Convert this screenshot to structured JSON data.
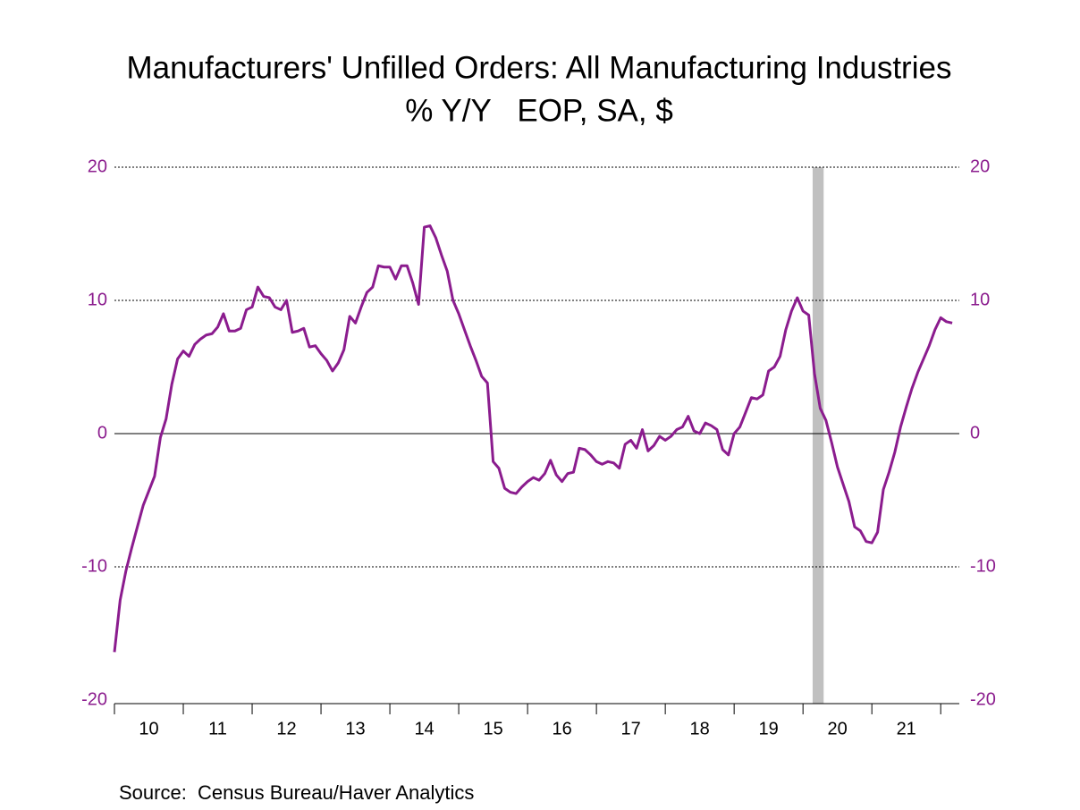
{
  "chart_data": {
    "type": "line",
    "title": "Manufacturers' Unfilled Orders: All Manufacturing Industries",
    "subtitle": "% Y/Y   EOP, SA, $",
    "source": "Source:  Census Bureau/Haver Analytics",
    "x": [
      2010,
      2010.083,
      2010.167,
      2010.25,
      2010.333,
      2010.417,
      2010.5,
      2010.583,
      2010.667,
      2010.75,
      2010.833,
      2010.917,
      2011,
      2011.083,
      2011.167,
      2011.25,
      2011.333,
      2011.417,
      2011.5,
      2011.583,
      2011.667,
      2011.75,
      2011.833,
      2011.917,
      2012,
      2012.083,
      2012.167,
      2012.25,
      2012.333,
      2012.417,
      2012.5,
      2012.583,
      2012.667,
      2012.75,
      2012.833,
      2012.917,
      2013,
      2013.083,
      2013.167,
      2013.25,
      2013.333,
      2013.417,
      2013.5,
      2013.583,
      2013.667,
      2013.75,
      2013.833,
      2013.917,
      2014,
      2014.083,
      2014.167,
      2014.25,
      2014.333,
      2014.417,
      2014.5,
      2014.583,
      2014.667,
      2014.75,
      2014.833,
      2014.917,
      2015,
      2015.083,
      2015.167,
      2015.25,
      2015.333,
      2015.417,
      2015.5,
      2015.583,
      2015.667,
      2015.75,
      2015.833,
      2015.917,
      2016,
      2016.083,
      2016.167,
      2016.25,
      2016.333,
      2016.417,
      2016.5,
      2016.583,
      2016.667,
      2016.75,
      2016.833,
      2016.917,
      2017,
      2017.083,
      2017.167,
      2017.25,
      2017.333,
      2017.417,
      2017.5,
      2017.583,
      2017.667,
      2017.75,
      2017.833,
      2017.917,
      2018,
      2018.083,
      2018.167,
      2018.25,
      2018.333,
      2018.417,
      2018.5,
      2018.583,
      2018.667,
      2018.75,
      2018.833,
      2018.917,
      2019,
      2019.083,
      2019.167,
      2019.25,
      2019.333,
      2019.417,
      2019.5,
      2019.583,
      2019.667,
      2019.75,
      2019.833,
      2019.917,
      2020,
      2020.083,
      2020.167,
      2020.25,
      2020.333,
      2020.417,
      2020.5,
      2020.583,
      2020.667,
      2020.75,
      2020.833,
      2020.917,
      2021,
      2021.083,
      2021.167,
      2021.25,
      2021.333,
      2021.417,
      2021.5,
      2021.583,
      2021.667,
      2021.75,
      2021.833,
      2021.917,
      2022,
      2022.083,
      2022.167
    ],
    "series": [
      {
        "name": "Unfilled Orders % Y/Y",
        "color": "#8b1c8e",
        "values": [
          -16.4,
          -12.5,
          -10.3,
          -8.6,
          -7.0,
          -5.4,
          -4.3,
          -3.2,
          -0.3,
          1.1,
          3.7,
          5.6,
          6.2,
          5.8,
          6.7,
          7.1,
          7.4,
          7.5,
          8.0,
          9.0,
          7.7,
          7.7,
          7.9,
          9.3,
          9.5,
          11.0,
          10.3,
          10.2,
          9.5,
          9.3,
          10.0,
          7.6,
          7.7,
          7.9,
          6.5,
          6.6,
          6.0,
          5.5,
          4.7,
          5.3,
          6.3,
          8.8,
          8.3,
          9.5,
          10.6,
          11.0,
          12.6,
          12.5,
          12.5,
          11.6,
          12.6,
          12.6,
          11.3,
          9.7,
          15.5,
          15.6,
          14.7,
          13.4,
          12.2,
          10.0,
          9.0,
          7.8,
          6.6,
          5.5,
          4.3,
          3.8,
          -2.1,
          -2.6,
          -4.1,
          -4.4,
          -4.5,
          -4.0,
          -3.6,
          -3.3,
          -3.5,
          -3.0,
          -2.0,
          -3.1,
          -3.6,
          -3.0,
          -2.9,
          -1.1,
          -1.2,
          -1.6,
          -2.1,
          -2.3,
          -2.1,
          -2.2,
          -2.6,
          -0.8,
          -0.5,
          -1.1,
          0.3,
          -1.3,
          -0.9,
          -0.2,
          -0.5,
          -0.2,
          0.3,
          0.5,
          1.3,
          0.2,
          0.0,
          0.8,
          0.6,
          0.3,
          -1.2,
          -1.6,
          0.0,
          0.5,
          1.6,
          2.7,
          2.6,
          2.9,
          4.7,
          5.0,
          5.8,
          7.8,
          9.2,
          10.2,
          9.2,
          8.9,
          4.5,
          1.9,
          1.0,
          -0.7,
          -2.5,
          -3.8,
          -5.1,
          -7.0,
          -7.3,
          -8.1,
          -8.2,
          -7.4,
          -4.2,
          -2.9,
          -1.4,
          0.5,
          2.0,
          3.4,
          4.6,
          5.6,
          6.6,
          7.8,
          8.7,
          8.4,
          8.3
        ]
      }
    ],
    "xlim": [
      2010,
      2022.27
    ],
    "xticks": [
      {
        "value": 2010.5,
        "label": "10"
      },
      {
        "value": 2011.5,
        "label": "11"
      },
      {
        "value": 2012.5,
        "label": "12"
      },
      {
        "value": 2013.5,
        "label": "13"
      },
      {
        "value": 2014.5,
        "label": "14"
      },
      {
        "value": 2015.5,
        "label": "15"
      },
      {
        "value": 2016.5,
        "label": "16"
      },
      {
        "value": 2017.5,
        "label": "17"
      },
      {
        "value": 2018.5,
        "label": "18"
      },
      {
        "value": 2019.5,
        "label": "19"
      },
      {
        "value": 2020.5,
        "label": "20"
      },
      {
        "value": 2021.5,
        "label": "21"
      }
    ],
    "xtick_marks": [
      2010,
      2011,
      2012,
      2013,
      2014,
      2015,
      2016,
      2017,
      2018,
      2019,
      2020,
      2021,
      2022
    ],
    "ylim": [
      -20,
      20
    ],
    "yticks": [
      -20,
      -10,
      0,
      10,
      20
    ],
    "y2lim": [
      -20,
      20
    ],
    "y2ticks": [
      -20,
      -10,
      0,
      10,
      20
    ],
    "shade": {
      "from": 2020.14,
      "to": 2020.3,
      "color": "#c0c0c0"
    },
    "tick_color": "#8b1c8e",
    "grid": true
  }
}
